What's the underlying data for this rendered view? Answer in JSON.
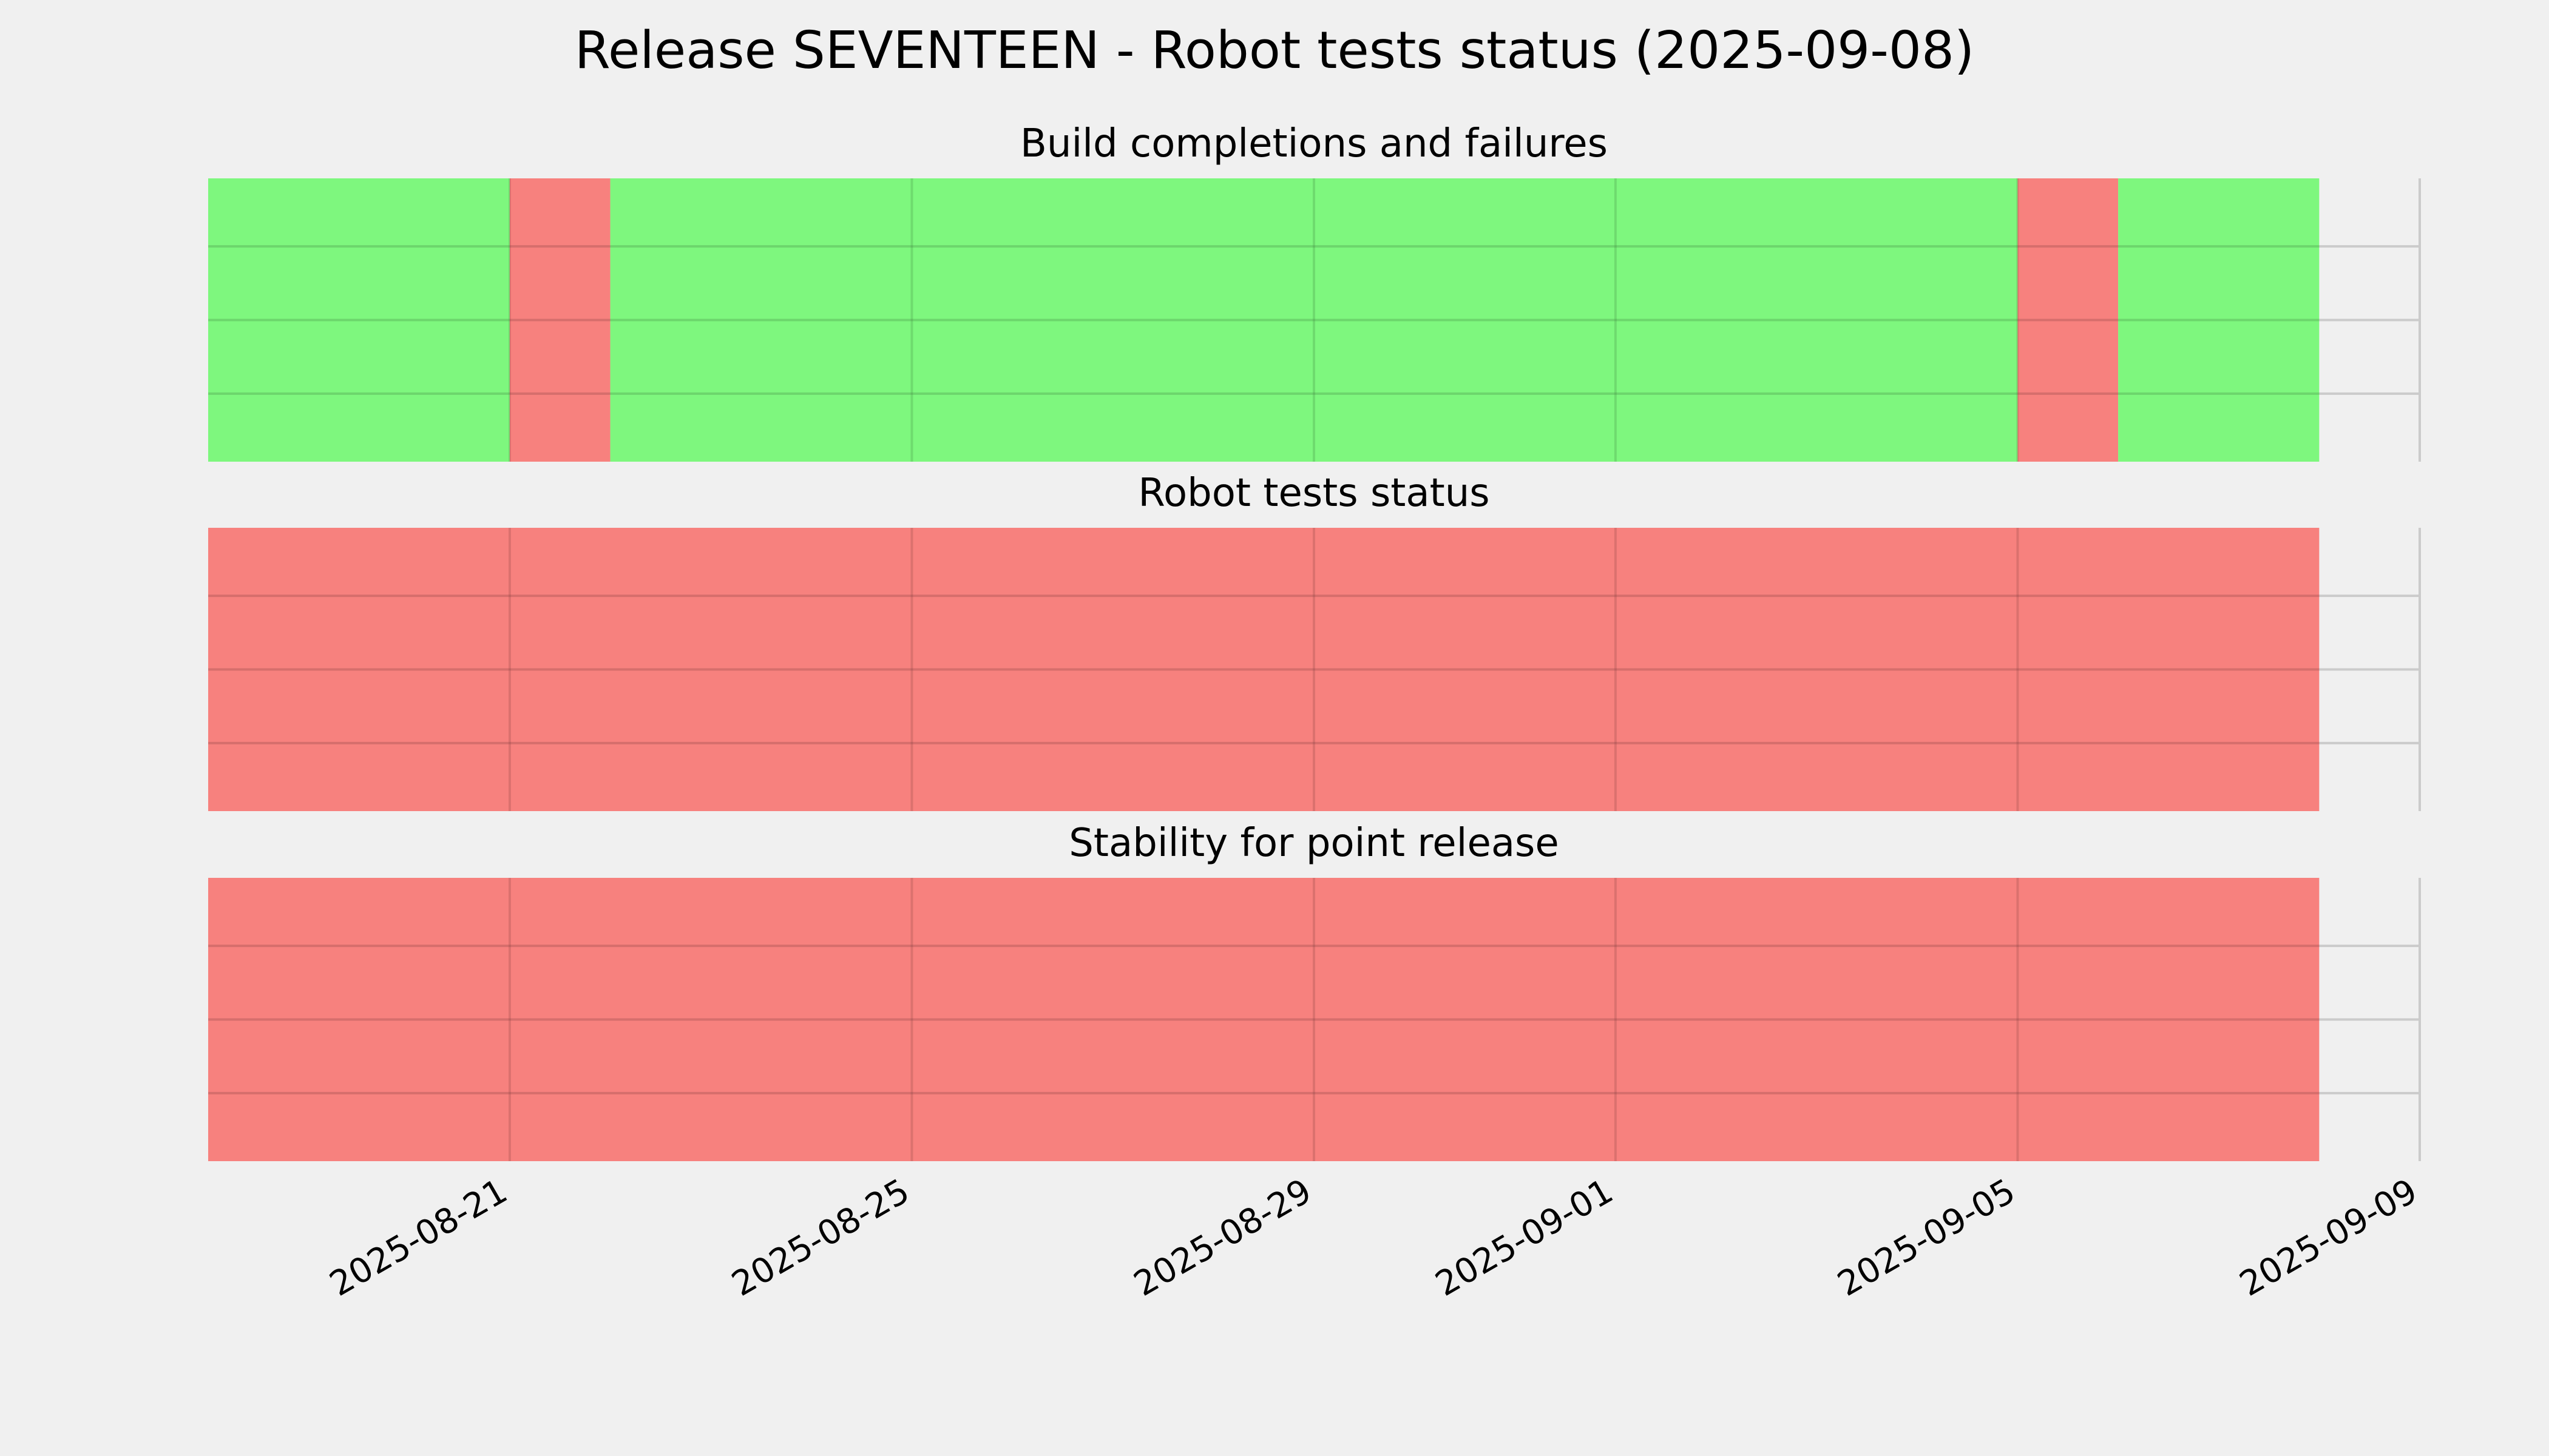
{
  "chart_data": {
    "type": "timeline",
    "title": "Release SEVENTEEN - Robot tests status (2025-09-08)",
    "x_ticks": [
      "2025-08-21",
      "2025-08-25",
      "2025-08-29",
      "2025-09-01",
      "2025-09-05",
      "2025-09-09"
    ],
    "xlim": [
      "2025-08-18",
      "2025-09-09"
    ],
    "grid": true,
    "colors": {
      "pass": "#74f774",
      "fail": "#f77774",
      "background": "#f0f0f0",
      "grid": "#cbcbcb"
    },
    "panels": [
      {
        "title": "Build completions and failures",
        "segments": [
          {
            "start": "2025-08-18",
            "end": "2025-08-21",
            "status": "pass"
          },
          {
            "start": "2025-08-21",
            "end": "2025-08-22",
            "status": "fail"
          },
          {
            "start": "2025-08-22",
            "end": "2025-09-05",
            "status": "pass"
          },
          {
            "start": "2025-09-05",
            "end": "2025-09-06",
            "status": "fail"
          },
          {
            "start": "2025-09-06",
            "end": "2025-09-08",
            "status": "pass"
          }
        ]
      },
      {
        "title": "Robot tests status",
        "segments": [
          {
            "start": "2025-08-18",
            "end": "2025-09-08",
            "status": "fail"
          }
        ]
      },
      {
        "title": "Stability for point release",
        "segments": [
          {
            "start": "2025-08-18",
            "end": "2025-09-08",
            "status": "fail"
          }
        ]
      }
    ]
  }
}
